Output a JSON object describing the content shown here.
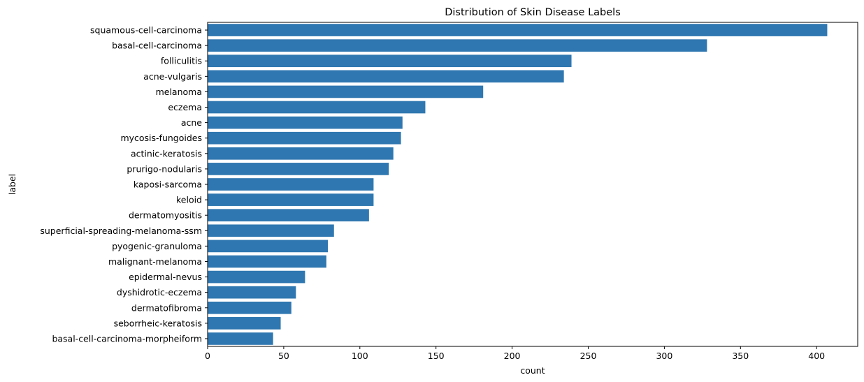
{
  "chart_data": {
    "type": "bar",
    "orientation": "horizontal",
    "title": "Distribution of Skin Disease Labels",
    "xlabel": "count",
    "ylabel": "label",
    "xlim": [
      0,
      427
    ],
    "xticks": [
      0,
      50,
      100,
      150,
      200,
      250,
      300,
      350,
      400
    ],
    "grid": false,
    "bar_color": "#2f77b0",
    "categories": [
      "squamous-cell-carcinoma",
      "basal-cell-carcinoma",
      "folliculitis",
      "acne-vulgaris",
      "melanoma",
      "eczema",
      "acne",
      "mycosis-fungoides",
      "actinic-keratosis",
      "prurigo-nodularis",
      "kaposi-sarcoma",
      "keloid",
      "dermatomyositis",
      "superficial-spreading-melanoma-ssm",
      "pyogenic-granuloma",
      "malignant-melanoma",
      "epidermal-nevus",
      "dyshidrotic-eczema",
      "dermatofibroma",
      "seborrheic-keratosis",
      "basal-cell-carcinoma-morpheiform"
    ],
    "values": [
      407,
      328,
      239,
      234,
      181,
      143,
      128,
      127,
      122,
      119,
      109,
      109,
      106,
      83,
      79,
      78,
      64,
      58,
      55,
      48,
      43
    ]
  }
}
